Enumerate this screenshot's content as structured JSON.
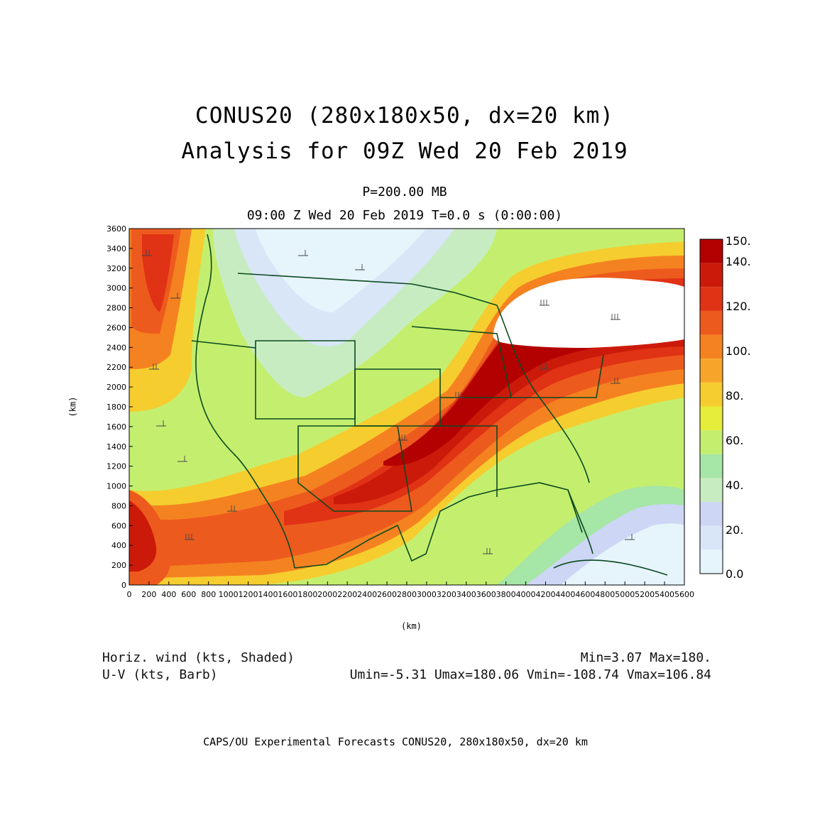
{
  "titles": {
    "line1": "CONUS20 (280x180x50, dx=20 km)",
    "line2": "Analysis for 09Z Wed 20 Feb 2019",
    "level": "P=200.00 MB",
    "time": "09:00 Z Wed 20 Feb 2019    T=0.0 s (0:00:00)"
  },
  "axes": {
    "x_label": "(km)",
    "y_label": "(km)",
    "x_ticks": [
      "0",
      "200",
      "400",
      "600",
      "800",
      "1000",
      "1200",
      "1400",
      "1600",
      "1800",
      "2000",
      "2200",
      "2400",
      "2600",
      "2800",
      "3000",
      "3200",
      "3400",
      "3600",
      "3800",
      "4000",
      "4200",
      "4400",
      "4600",
      "4800",
      "5000",
      "5200",
      "5400",
      "5600"
    ],
    "y_ticks": [
      "0",
      "200",
      "400",
      "600",
      "800",
      "1000",
      "1200",
      "1400",
      "1600",
      "1800",
      "2000",
      "2200",
      "2400",
      "2600",
      "2800",
      "3000",
      "3200",
      "3400",
      "3600"
    ],
    "x_range_km": [
      0,
      5600
    ],
    "y_range_km": [
      0,
      3600
    ]
  },
  "colorbar": {
    "labels": [
      "150.",
      "140.",
      "120.",
      "100.",
      "80.",
      "60.",
      "40.",
      "20.",
      "0.0"
    ],
    "colors": [
      "#b30000",
      "#cc1a0a",
      "#e03214",
      "#ed5a1e",
      "#f58220",
      "#f7a52a",
      "#f5cd2f",
      "#e6ed3a",
      "#c4ef6e",
      "#a6e6a6",
      "#c8ecc2",
      "#cdd6f5",
      "#d8e6f8",
      "#e6f4fc"
    ]
  },
  "legend": {
    "shaded_label": "Horiz. wind (kts, Shaded)",
    "barb_label": "U-V (kts, Barb)",
    "minmax": "Min=3.07 Max=180.",
    "uv_stats": "Umin=-5.31 Umax=180.06 Vmin=-108.74 Vmax=106.84"
  },
  "footer": "CAPS/OU Experimental Forecasts  CONUS20, 280x180x50, dx=20 km"
}
